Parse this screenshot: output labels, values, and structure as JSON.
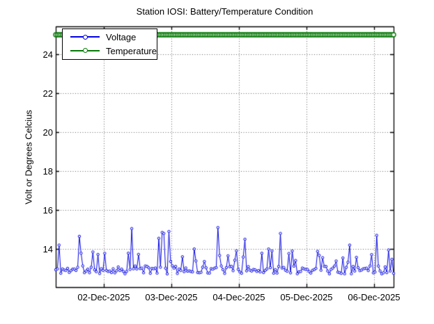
{
  "chart_data": {
    "type": "line",
    "title": "Station IOSI: Battery/Temperature Condition",
    "ylabel": "Volt or Degrees Celcius",
    "xlabel": "",
    "ylim": [
      12.04,
      25.43
    ],
    "yticks": [
      14,
      16,
      18,
      20,
      22,
      24
    ],
    "x_span_days": 5,
    "xticks": {
      "labels": [
        "02-Dec-2025",
        "03-Dec-2025",
        "04-Dec-2025",
        "05-Dec-2025",
        "06-Dec-2025"
      ],
      "positions_days": [
        0.711,
        1.711,
        2.711,
        3.711,
        4.711
      ]
    },
    "grid": "dotted",
    "grid_color": "#606060",
    "axis_color": "#000000",
    "legend": {
      "position": "top-left",
      "entries": [
        "Voltage",
        "Temperature"
      ]
    },
    "series": [
      {
        "name": "Voltage",
        "color": "#0000E0",
        "marker": "circle",
        "samples_per_day": 40,
        "baseline_range": [
          12.72,
          13.14
        ],
        "medium_spike_probability": 0.1,
        "medium_spike_range": [
          13.3,
          13.95
        ],
        "noise_seed": 11,
        "spikes": [
          {
            "t": 0.062,
            "v": 14.2
          },
          {
            "t": 0.361,
            "v": 14.65
          },
          {
            "t": 1.136,
            "v": 15.05
          },
          {
            "t": 1.527,
            "v": 14.55
          },
          {
            "t": 1.576,
            "v": 14.85
          },
          {
            "t": 1.602,
            "v": 14.8
          },
          {
            "t": 1.671,
            "v": 14.9
          },
          {
            "t": 2.044,
            "v": 14.0
          },
          {
            "t": 2.406,
            "v": 15.1
          },
          {
            "t": 2.55,
            "v": 13.65
          },
          {
            "t": 2.808,
            "v": 14.5
          },
          {
            "t": 3.149,
            "v": 14.0
          },
          {
            "t": 3.2,
            "v": 13.9
          },
          {
            "t": 3.335,
            "v": 14.8
          },
          {
            "t": 3.489,
            "v": 13.9
          },
          {
            "t": 4.357,
            "v": 14.2
          },
          {
            "t": 4.749,
            "v": 14.7
          },
          {
            "t": 4.935,
            "v": 13.95
          }
        ]
      },
      {
        "name": "Temperature",
        "color": "#067806",
        "marker": "circle",
        "constant_value": 25,
        "samples_per_day": 40
      }
    ]
  }
}
